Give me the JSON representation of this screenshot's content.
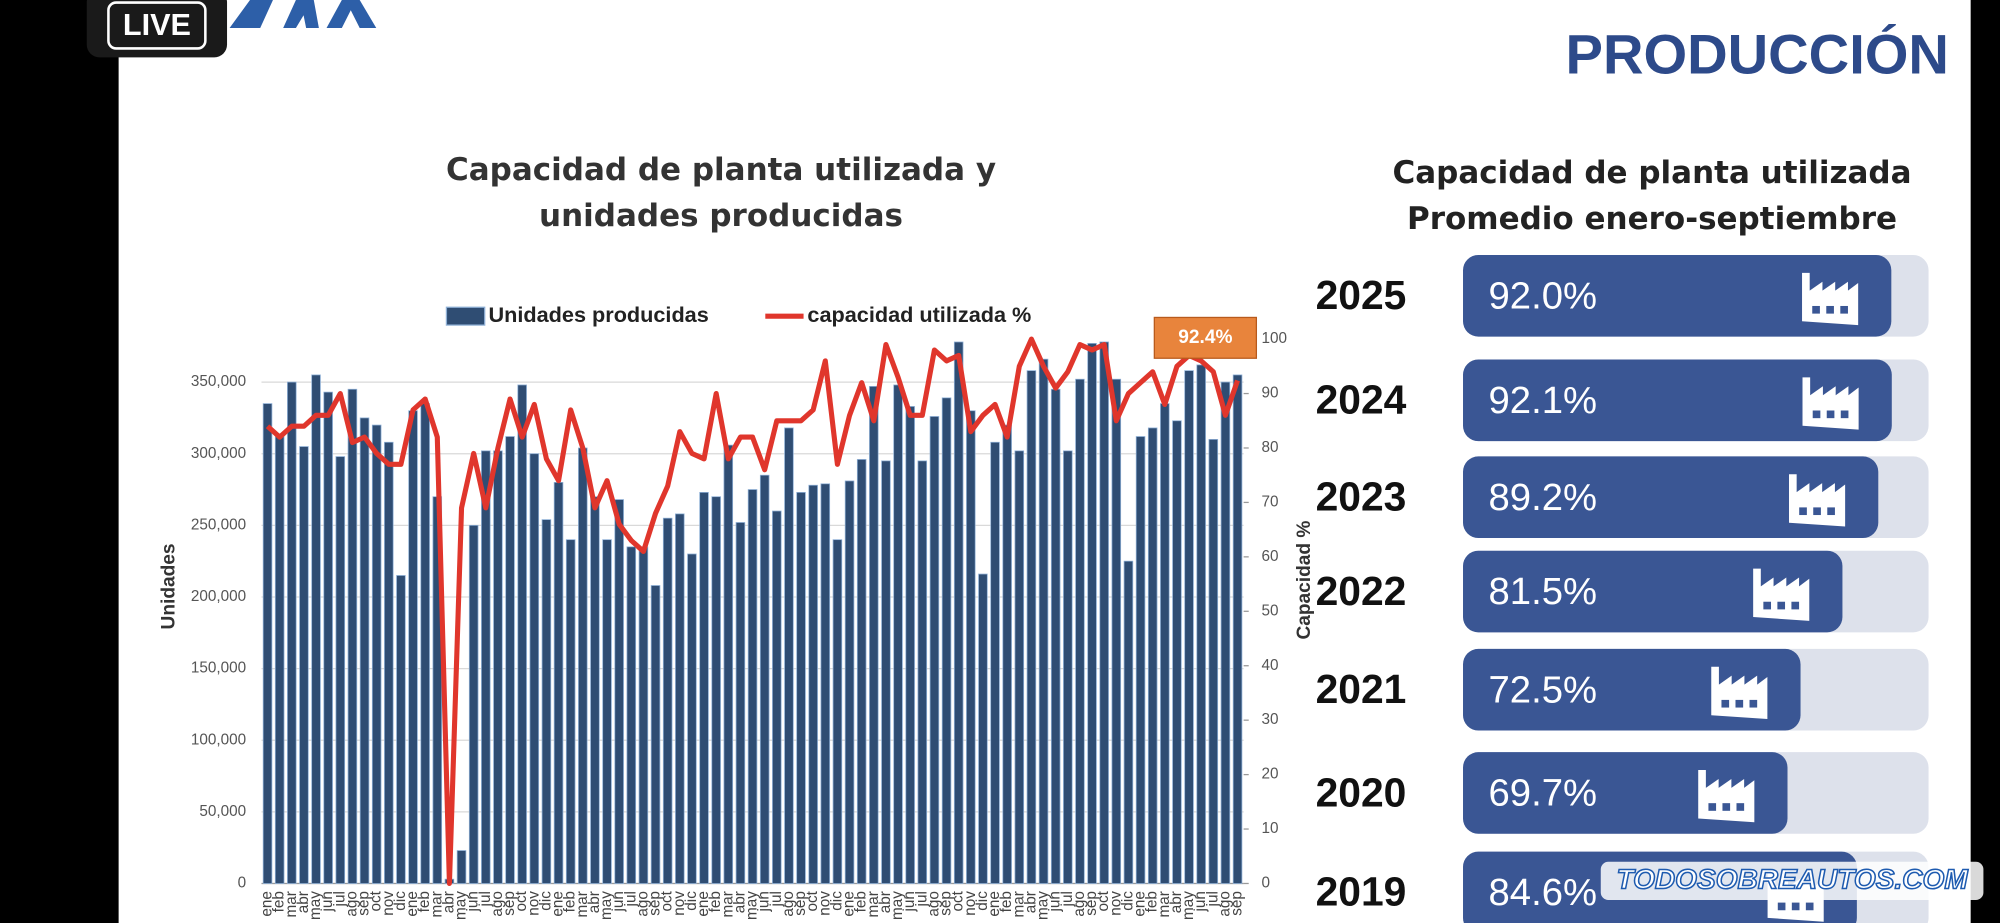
{
  "badge": {
    "text": "LIVE"
  },
  "header": {
    "title": "PRODUCCIÓN"
  },
  "watermark": "TODOSOBREAUTOS.COM",
  "chart_data": [
    {
      "type": "bar",
      "title": "Capacidad de planta utilizada y unidades producidas",
      "categories": [
        "ene",
        "feb",
        "mar",
        "abr",
        "may",
        "jun",
        "jul",
        "ago",
        "sep",
        "oct",
        "nov",
        "dic",
        "ene",
        "feb",
        "mar",
        "abr",
        "may",
        "jun",
        "jul",
        "ago",
        "sep",
        "oct",
        "nov",
        "dic",
        "ene",
        "feb",
        "mar",
        "abr",
        "may",
        "jun",
        "jul",
        "ago",
        "sep",
        "oct",
        "nov",
        "dic",
        "ene",
        "feb",
        "mar",
        "abr",
        "may",
        "jun",
        "jul",
        "ago",
        "sep",
        "oct",
        "nov",
        "dic",
        "ene",
        "feb",
        "mar",
        "abr",
        "may",
        "jun",
        "jul",
        "ago",
        "sep",
        "oct",
        "nov",
        "dic",
        "ene",
        "feb",
        "mar",
        "abr",
        "may",
        "jun",
        "jul",
        "ago",
        "sep",
        "oct",
        "nov",
        "dic",
        "ene",
        "feb",
        "mar",
        "abr",
        "may",
        "jun",
        "jul",
        "ago",
        "sep"
      ],
      "series": [
        {
          "name": "Unidades producidas",
          "color": "#2f4d73",
          "values": [
            335000,
            312000,
            350000,
            305000,
            355000,
            343000,
            298000,
            345000,
            325000,
            320000,
            308000,
            215000,
            330000,
            335000,
            270000,
            3000,
            23000,
            250000,
            302000,
            302000,
            312000,
            348000,
            300000,
            254000,
            280000,
            240000,
            304000,
            270000,
            240000,
            268000,
            235000,
            235000,
            208000,
            255000,
            258000,
            230000,
            273000,
            270000,
            306000,
            252000,
            275000,
            285000,
            260000,
            318000,
            273000,
            278000,
            279000,
            240000,
            281000,
            296000,
            347000,
            295000,
            348000,
            333000,
            295000,
            326000,
            339000,
            378000,
            330000,
            216000,
            308000,
            320000,
            302000,
            358000,
            366000,
            345000,
            302000,
            352000,
            377000,
            378000,
            352000,
            225000,
            312000,
            318000,
            335000,
            323000,
            358000,
            362000,
            310000,
            350000,
            355000
          ]
        },
        {
          "name": "capacidad utilizada %",
          "type": "line",
          "axis": "y2",
          "color": "#e0362c",
          "values": [
            84,
            82,
            84,
            84,
            86,
            86,
            90,
            81,
            82,
            79,
            77,
            77,
            87,
            89,
            82,
            0,
            69,
            79,
            69,
            80,
            89,
            82,
            88,
            78,
            74,
            87,
            80,
            69,
            74,
            66,
            63,
            61,
            68,
            73,
            83,
            79,
            78,
            90,
            78,
            82,
            82,
            76,
            85,
            85,
            85,
            87,
            96,
            77,
            86,
            92,
            85,
            99,
            93,
            86,
            86,
            98,
            96,
            97,
            83,
            86,
            88,
            82,
            95,
            100,
            95,
            91,
            94,
            99,
            98,
            99,
            85,
            90,
            92,
            94,
            88,
            95,
            97,
            96,
            94,
            86,
            92.4
          ]
        }
      ],
      "ylim": [
        0,
        380000
      ],
      "yticks": [
        0,
        {
          "value": 50000,
          "label": "50,000"
        },
        {
          "value": 100000,
          "label": "100,000"
        },
        {
          "value": 150000,
          "label": "150,000"
        },
        {
          "value": 200000,
          "label": "200,000"
        },
        {
          "value": 250000,
          "label": "250,000"
        },
        {
          "value": 300000,
          "label": "300,000"
        },
        {
          "value": 350000,
          "label": "350,000"
        }
      ],
      "y2lim": [
        0,
        100
      ],
      "y2ticks": [
        0,
        10,
        20,
        30,
        40,
        50,
        60,
        70,
        80,
        90,
        100
      ],
      "ylabel": "Unidades",
      "y2label": "Capacidad %",
      "grid": true,
      "legend": "top",
      "annotation": {
        "text": "92.4%",
        "color": "#e8843c"
      }
    },
    {
      "type": "bar",
      "orientation": "horizontal",
      "title": "Capacidad de planta utilizada Promedio enero-septiembre",
      "categories": [
        "2025",
        "2024",
        "2023",
        "2022",
        "2021",
        "2020",
        "2019"
      ],
      "values": [
        92.0,
        92.1,
        89.2,
        81.5,
        72.5,
        69.7,
        84.6
      ],
      "value_labels": [
        "92.0%",
        "92.1%",
        "89.2%",
        "81.5%",
        "72.5%",
        "69.7%",
        "84.6%"
      ],
      "xlim": [
        0,
        100
      ],
      "color": "#3a5694",
      "track_color": "#dde1eb"
    }
  ]
}
